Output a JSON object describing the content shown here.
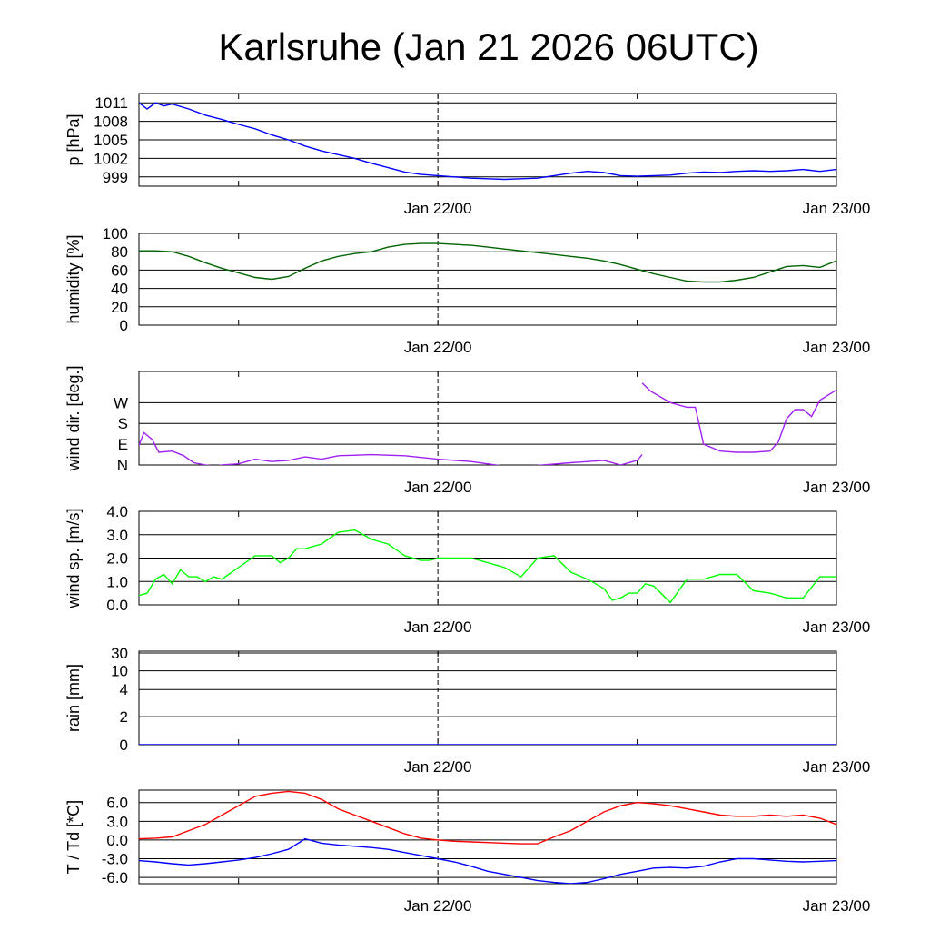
{
  "title": "Karlsruhe (Jan 21 2026 06UTC)",
  "x_tick_labels": [
    "Jan 22/00",
    "Jan 23/00"
  ],
  "chart_data": [
    {
      "type": "line",
      "ylabel": "p [hPa]",
      "ylim": [
        997.5,
        1012.5
      ],
      "yticks": [
        999,
        1002,
        1005,
        1008,
        1011
      ],
      "ytick_labels": [
        "999",
        "1002",
        "1005",
        "1008",
        "1011"
      ],
      "grid": true,
      "xlim_hours": [
        0,
        42
      ],
      "series": [
        {
          "color": "#0000ff",
          "x": [
            0,
            0.5,
            1,
            1.5,
            2,
            3,
            4,
            5,
            6,
            7,
            8,
            9,
            10,
            11,
            12,
            13,
            14,
            15,
            16,
            17,
            18,
            19,
            20,
            21,
            22,
            23,
            24,
            25,
            26,
            27,
            28,
            29,
            30,
            31,
            32,
            33,
            34,
            35,
            36,
            37,
            38,
            39,
            40,
            41,
            42
          ],
          "values": [
            1011,
            1010,
            1011,
            1010.5,
            1010.8,
            1010,
            1009,
            1008.3,
            1007.5,
            1006.8,
            1005.8,
            1005,
            1004,
            1003.2,
            1002.6,
            1002,
            1001.2,
            1000.5,
            999.8,
            999.4,
            999.2,
            999,
            998.8,
            998.7,
            998.6,
            998.7,
            998.8,
            999.2,
            999.6,
            999.9,
            999.7,
            999.2,
            999.1,
            999.2,
            999.3,
            999.6,
            999.8,
            999.7,
            999.9,
            1000,
            999.9,
            1000,
            1000.2,
            999.9,
            1000.2
          ]
        }
      ]
    },
    {
      "type": "line",
      "ylabel": "humidity [%]",
      "ylim": [
        0,
        100
      ],
      "yticks": [
        0,
        20,
        40,
        60,
        80,
        100
      ],
      "ytick_labels": [
        "0",
        "20",
        "40",
        "60",
        "80",
        "100"
      ],
      "grid": true,
      "xlim_hours": [
        0,
        42
      ],
      "series": [
        {
          "color": "#006400",
          "x": [
            0,
            1,
            2,
            3,
            4,
            5,
            6,
            7,
            8,
            9,
            10,
            11,
            12,
            13,
            14,
            15,
            16,
            17,
            18,
            19,
            20,
            21,
            22,
            23,
            24,
            25,
            26,
            27,
            28,
            29,
            30,
            31,
            32,
            33,
            34,
            35,
            36,
            37,
            38,
            39,
            40,
            41,
            42
          ],
          "values": [
            81,
            81,
            80,
            75,
            68,
            62,
            57,
            52,
            50,
            53,
            62,
            70,
            75,
            78,
            80,
            85,
            88,
            89,
            89,
            88,
            87,
            85,
            83,
            81,
            79,
            77,
            75,
            73,
            70,
            66,
            61,
            56,
            52,
            48,
            47,
            47,
            49,
            52,
            58,
            64,
            65,
            63,
            70
          ]
        }
      ]
    },
    {
      "type": "line",
      "ylabel": "wind dir. [deg.]",
      "ylim": [
        0,
        405
      ],
      "yticks": [
        0,
        90,
        180,
        270
      ],
      "ytick_labels": [
        "N",
        "E",
        "S",
        "W"
      ],
      "grid": true,
      "xlim_hours": [
        0,
        42
      ],
      "series": [
        {
          "color": "#a020f0",
          "x": [
            0,
            0.3,
            0.8,
            1.2,
            2,
            2.7,
            3.3,
            4,
            4.6,
            5,
            6,
            7,
            8,
            9,
            10,
            11,
            12,
            14,
            16,
            18,
            20,
            22,
            24,
            26,
            28,
            29,
            30,
            30.3
          ],
          "values": [
            85,
            140,
            110,
            55,
            60,
            40,
            10,
            0,
            -5,
            0,
            5,
            25,
            15,
            20,
            35,
            25,
            40,
            45,
            40,
            25,
            15,
            -5,
            -2,
            10,
            20,
            0,
            20,
            45
          ]
        },
        {
          "color": "#a020f0",
          "x": [
            30.3,
            30.8,
            32,
            33,
            33.5,
            34,
            35,
            36,
            37,
            38,
            38.5,
            39,
            39.5,
            40,
            40.5,
            41,
            42
          ],
          "values": [
            355,
            320,
            270,
            250,
            250,
            90,
            60,
            55,
            55,
            60,
            100,
            200,
            240,
            240,
            210,
            280,
            325
          ]
        }
      ]
    },
    {
      "type": "line",
      "ylabel": "wind sp. [m/s]",
      "ylim": [
        0,
        4
      ],
      "yticks": [
        0,
        1,
        2,
        3,
        4
      ],
      "ytick_labels": [
        "0.0",
        "1.0",
        "2.0",
        "3.0",
        "4.0"
      ],
      "grid": true,
      "xlim_hours": [
        0,
        42
      ],
      "series": [
        {
          "color": "#00ff00",
          "x": [
            0,
            0.5,
            1,
            1.5,
            2,
            2.5,
            3,
            3.5,
            4,
            4.5,
            5,
            6,
            7,
            8,
            8.5,
            9,
            9.5,
            10,
            11,
            12,
            13,
            14,
            15,
            16,
            17,
            17.5,
            18,
            19,
            20,
            21,
            22,
            23,
            24,
            25,
            26,
            27,
            28,
            28.5,
            29,
            29.5,
            30,
            30.5,
            31,
            32,
            33,
            33.5,
            34,
            34.5,
            35,
            36,
            37,
            38,
            39,
            40,
            41,
            42
          ],
          "values": [
            0.4,
            0.5,
            1.1,
            1.3,
            0.9,
            1.5,
            1.2,
            1.2,
            1.0,
            1.2,
            1.1,
            1.6,
            2.1,
            2.1,
            1.8,
            2.0,
            2.4,
            2.4,
            2.6,
            3.1,
            3.2,
            2.8,
            2.6,
            2.1,
            1.9,
            1.9,
            2.0,
            2.0,
            2.0,
            1.8,
            1.6,
            1.2,
            2.0,
            2.1,
            1.4,
            1.1,
            0.7,
            0.2,
            0.3,
            0.5,
            0.5,
            0.9,
            0.8,
            0.1,
            1.1,
            1.1,
            1.1,
            1.2,
            1.3,
            1.3,
            0.6,
            0.5,
            0.3,
            0.3,
            1.2,
            1.2
          ]
        }
      ]
    },
    {
      "type": "line",
      "ylabel": "rain [mm]",
      "yticks": [
        0,
        2,
        4,
        10,
        30
      ],
      "ytick_labels": [
        "0",
        "2",
        "4",
        "10",
        "30"
      ],
      "grid": true,
      "xlim_hours": [
        0,
        42
      ],
      "series": [
        {
          "color": "#0000ff",
          "x": [
            0,
            42
          ],
          "values": [
            0,
            0
          ]
        }
      ]
    },
    {
      "type": "line",
      "ylabel": "T / Td [*C]",
      "ylim": [
        -7,
        8
      ],
      "yticks": [
        -6,
        -3,
        0,
        3,
        6
      ],
      "ytick_labels": [
        "-6.0",
        "-3.0",
        "0.0",
        "3.0",
        "6.0"
      ],
      "grid": true,
      "xlim_hours": [
        0,
        42
      ],
      "series": [
        {
          "color": "#ff0000",
          "x": [
            0,
            1,
            2,
            3,
            4,
            5,
            6,
            7,
            8,
            9,
            10,
            11,
            12,
            13,
            14,
            15,
            16,
            17,
            18,
            19,
            20,
            21,
            22,
            23,
            24,
            25,
            26,
            27,
            28,
            29,
            30,
            31,
            32,
            33,
            34,
            35,
            36,
            37,
            38,
            39,
            40,
            41,
            42
          ],
          "values": [
            0.2,
            0.3,
            0.5,
            1.5,
            2.5,
            4.0,
            5.5,
            7.0,
            7.5,
            7.8,
            7.5,
            6.5,
            5.0,
            4.0,
            3.0,
            2.0,
            1.0,
            0.3,
            0,
            -0.2,
            -0.3,
            -0.4,
            -0.5,
            -0.6,
            -0.6,
            0.5,
            1.5,
            3.0,
            4.5,
            5.5,
            6.0,
            5.8,
            5.5,
            5.0,
            4.5,
            4.0,
            3.8,
            3.8,
            4.0,
            3.8,
            4.0,
            3.5,
            2.5
          ]
        },
        {
          "color": "#0000ff",
          "x": [
            0,
            1,
            2,
            3,
            4,
            5,
            6,
            7,
            8,
            9,
            10,
            11,
            12,
            13,
            14,
            15,
            16,
            17,
            18,
            19,
            20,
            21,
            22,
            23,
            24,
            25,
            26,
            27,
            28,
            29,
            30,
            31,
            32,
            33,
            34,
            35,
            36,
            37,
            38,
            39,
            40,
            41,
            42
          ],
          "values": [
            -3.3,
            -3.5,
            -3.8,
            -4.0,
            -3.8,
            -3.5,
            -3.2,
            -2.8,
            -2.2,
            -1.5,
            0.2,
            -0.5,
            -0.8,
            -1.0,
            -1.2,
            -1.5,
            -2.0,
            -2.5,
            -3.0,
            -3.5,
            -4.2,
            -5.0,
            -5.5,
            -6.0,
            -6.5,
            -6.8,
            -7.0,
            -6.8,
            -6.2,
            -5.5,
            -5.0,
            -4.5,
            -4.4,
            -4.5,
            -4.2,
            -3.5,
            -3.0,
            -3.0,
            -3.2,
            -3.4,
            -3.5,
            -3.4,
            -3.3
          ]
        }
      ]
    }
  ]
}
